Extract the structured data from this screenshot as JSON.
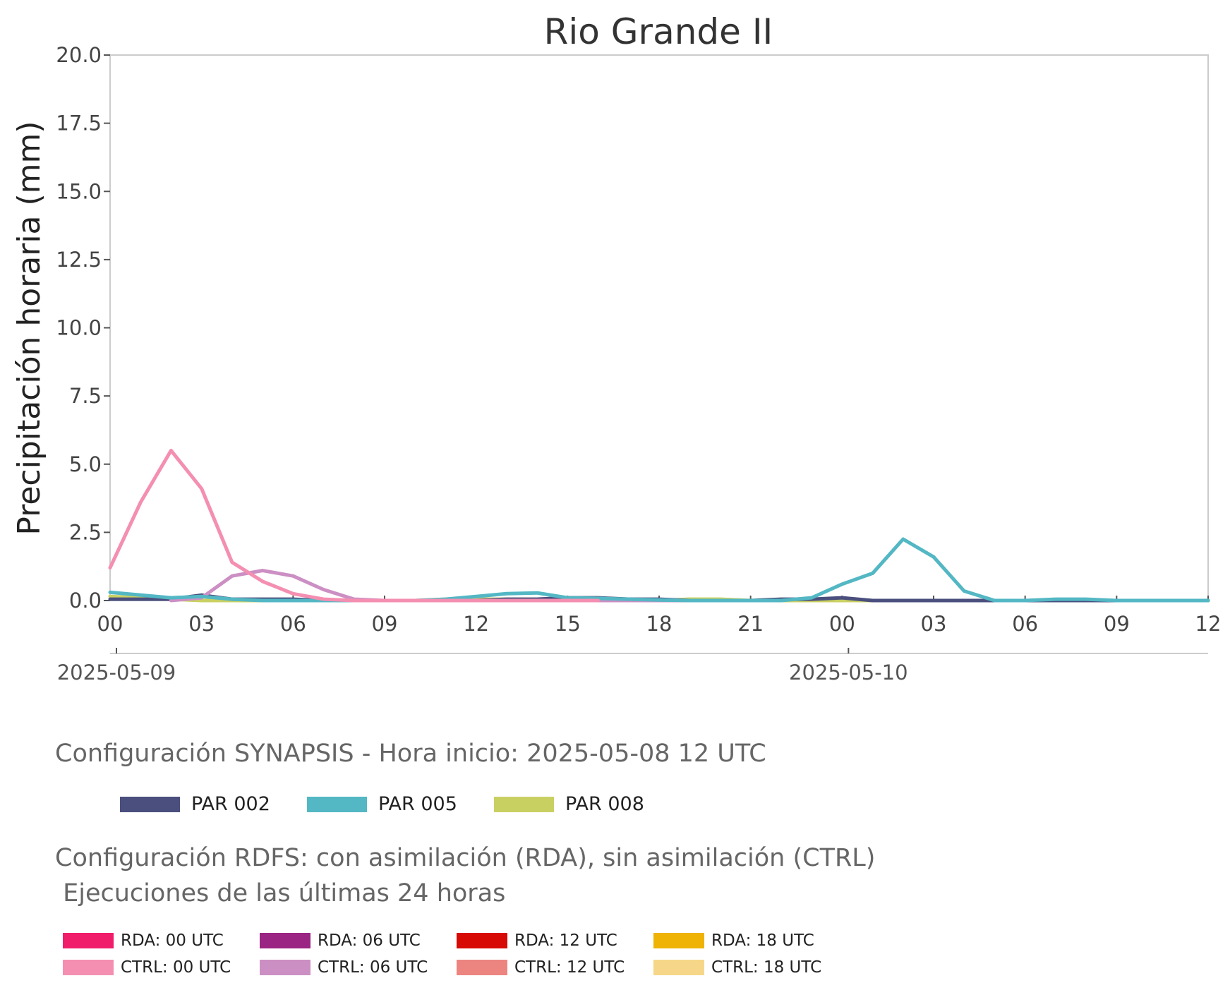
{
  "chart_data": {
    "type": "line",
    "title": "Rio Grande II",
    "ylabel": "Precipitación horaria (mm)",
    "xlabel": "",
    "ylim": [
      0,
      20
    ],
    "y_ticks": [
      "0.0",
      "2.5",
      "5.0",
      "7.5",
      "10.0",
      "12.5",
      "15.0",
      "17.5",
      "20.0"
    ],
    "x_ticks": [
      "00",
      "03",
      "06",
      "09",
      "12",
      "15",
      "18",
      "21",
      "00",
      "03",
      "06",
      "09",
      "12"
    ],
    "x_range_hours": [
      0,
      36
    ],
    "date_labels": [
      {
        "label": "2025-05-09",
        "hour": 0
      },
      {
        "label": "2025-05-10",
        "hour": 24
      }
    ],
    "grid": false,
    "series": [
      {
        "name": "PAR 002",
        "color": "#4a4f7e",
        "x": [
          0,
          1,
          2,
          3,
          4,
          5,
          6,
          7,
          8,
          9,
          10,
          11,
          12,
          13,
          14,
          15,
          16,
          17,
          18,
          19,
          20,
          21,
          22,
          23,
          24,
          25,
          26,
          27,
          28,
          29,
          30,
          31,
          32,
          33,
          34,
          35,
          36
        ],
        "y": [
          0.05,
          0.05,
          0.05,
          0.2,
          0.05,
          0.05,
          0.05,
          0.0,
          0.0,
          0.0,
          0.0,
          0.0,
          0.0,
          0.05,
          0.05,
          0.1,
          0.1,
          0.05,
          0.05,
          0.0,
          0.0,
          0.0,
          0.05,
          0.05,
          0.1,
          0.0,
          0.0,
          0.0,
          0.0,
          0.0,
          0.0,
          0.0,
          0.0,
          0.0,
          0.0,
          0.0,
          0.0
        ]
      },
      {
        "name": "PAR 005",
        "color": "#53b7c4",
        "x": [
          0,
          1,
          2,
          3,
          4,
          5,
          6,
          7,
          8,
          9,
          10,
          11,
          12,
          13,
          14,
          15,
          16,
          17,
          18,
          19,
          20,
          21,
          22,
          23,
          24,
          25,
          26,
          27,
          28,
          29,
          30,
          31,
          32,
          33,
          34,
          35,
          36
        ],
        "y": [
          0.3,
          0.2,
          0.1,
          0.15,
          0.05,
          0.0,
          0.0,
          0.0,
          0.0,
          0.0,
          0.0,
          0.05,
          0.15,
          0.25,
          0.28,
          0.1,
          0.08,
          0.05,
          0.02,
          0.0,
          0.0,
          0.0,
          0.0,
          0.1,
          0.6,
          1.0,
          2.25,
          1.6,
          0.35,
          0.0,
          0.0,
          0.05,
          0.05,
          0.0,
          0.0,
          0.0,
          0.0
        ]
      },
      {
        "name": "PAR 008",
        "color": "#c9d062",
        "x": [
          0,
          1,
          2,
          3,
          4,
          5,
          6,
          7,
          8,
          9,
          10,
          11,
          12,
          13,
          14,
          15,
          16,
          17,
          18,
          19,
          20,
          21,
          22,
          23,
          24,
          25,
          26,
          27,
          28,
          29,
          30,
          31,
          32,
          33,
          34,
          35,
          36
        ],
        "y": [
          0.15,
          0.1,
          0.05,
          0.0,
          0.0,
          0.0,
          0.0,
          0.0,
          0.0,
          0.0,
          0.0,
          0.05,
          0.05,
          0.05,
          0.05,
          0.0,
          0.0,
          0.0,
          0.0,
          0.05,
          0.05,
          0.0,
          0.0,
          0.0,
          0.0,
          0.0,
          0.0,
          0.0,
          0.0,
          0.0,
          0.0,
          0.0,
          0.0,
          0.0,
          0.0,
          0.0,
          0.0
        ]
      },
      {
        "name": "CTRL: 00 UTC",
        "color": "#f48fb1",
        "x": [
          0,
          1,
          2,
          3,
          4,
          5,
          6,
          7,
          8,
          9,
          10,
          11,
          12,
          13,
          14,
          15,
          16
        ],
        "y": [
          1.2,
          3.6,
          5.5,
          4.1,
          1.4,
          0.7,
          0.25,
          0.05,
          0.0,
          0.0,
          0.0,
          0.0,
          0.0,
          0.0,
          0.0,
          0.0,
          0.0
        ]
      },
      {
        "name": "CTRL: 06 UTC",
        "color": "#cc8fc4",
        "x": [
          2,
          3,
          4,
          5,
          6,
          7,
          8,
          9,
          10,
          11,
          12,
          13,
          14,
          15,
          16,
          17,
          18,
          19,
          20,
          21,
          22
        ],
        "y": [
          0.0,
          0.1,
          0.9,
          1.1,
          0.9,
          0.4,
          0.05,
          0.0,
          0.0,
          0.0,
          0.0,
          0.0,
          0.0,
          0.0,
          0.0,
          0.0,
          0.0,
          0.0,
          0.0,
          0.0,
          0.0
        ]
      },
      {
        "name": "CTRL: 12 UTC",
        "color": "#ec8580",
        "x": [
          8,
          9,
          10,
          11,
          12,
          13,
          14,
          15,
          16,
          17,
          18,
          19,
          20,
          21,
          22,
          23,
          24,
          25,
          26,
          27,
          28
        ],
        "y": [
          0.0,
          0.0,
          0.0,
          0.0,
          0.0,
          0.0,
          0.0,
          0.0,
          0.0,
          0.0,
          0.0,
          0.0,
          0.0,
          0.0,
          0.0,
          0.0,
          0.0,
          0.0,
          0.0,
          0.0,
          0.0
        ]
      },
      {
        "name": "CTRL: 18 UTC",
        "color": "#f6d789",
        "x": [
          14,
          15,
          16,
          17,
          18,
          19,
          20,
          21,
          22,
          23,
          24,
          25,
          26,
          27,
          28,
          29,
          30,
          31,
          32,
          33,
          34,
          35,
          36
        ],
        "y": [
          0.0,
          0.0,
          0.0,
          0.0,
          0.0,
          0.05,
          0.05,
          0.0,
          0.0,
          0.0,
          0.0,
          0.0,
          0.0,
          0.0,
          0.0,
          0.0,
          0.0,
          0.0,
          0.0,
          0.0,
          0.0,
          0.0,
          0.0
        ]
      }
    ]
  },
  "legend_synapsis": {
    "title": "Configuración SYNAPSIS - Hora inicio: 2025-05-08 12 UTC",
    "items": [
      {
        "label": "PAR 002",
        "color": "#4a4f7e"
      },
      {
        "label": "PAR 005",
        "color": "#53b7c4"
      },
      {
        "label": "PAR 008",
        "color": "#c9d062"
      }
    ]
  },
  "legend_rdfs": {
    "title_line1": "Configuración RDFS: con asimilación (RDA), sin asimilación (CTRL)",
    "title_line2": " Ejecuciones de las últimas 24 horas",
    "items": [
      {
        "label": "RDA: 00 UTC",
        "color": "#f01d6b"
      },
      {
        "label": "CTRL: 00 UTC",
        "color": "#f48fb1"
      },
      {
        "label": "RDA: 06 UTC",
        "color": "#9a2583"
      },
      {
        "label": "CTRL: 06 UTC",
        "color": "#cc8fc4"
      },
      {
        "label": "RDA: 12 UTC",
        "color": "#d70a05"
      },
      {
        "label": "CTRL: 12 UTC",
        "color": "#ec8580"
      },
      {
        "label": "RDA: 18 UTC",
        "color": "#efb306"
      },
      {
        "label": "CTRL: 18 UTC",
        "color": "#f6d789"
      }
    ]
  }
}
